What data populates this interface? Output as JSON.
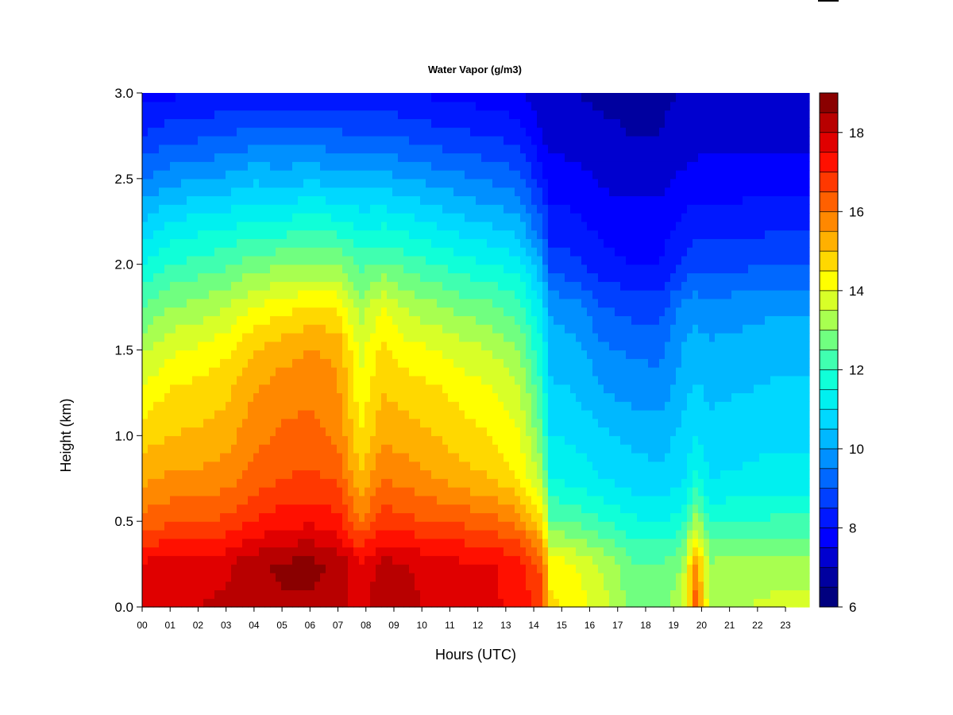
{
  "chart_data": {
    "type": "heatmap",
    "title": "Water Vapor (g/m3)",
    "xlabel": "Hours (UTC)",
    "ylabel": "Height (km)",
    "x_ticks": [
      "00",
      "01",
      "02",
      "03",
      "04",
      "05",
      "06",
      "07",
      "08",
      "09",
      "10",
      "11",
      "12",
      "13",
      "14",
      "15",
      "16",
      "17",
      "18",
      "19",
      "20",
      "21",
      "22",
      "23"
    ],
    "xlim": [
      0,
      23.85
    ],
    "y_ticks": [
      "0.0",
      "0.5",
      "1.0",
      "1.5",
      "2.0",
      "2.5",
      "3.0"
    ],
    "ylim": [
      0,
      3.0
    ],
    "colorbar": {
      "min": 6,
      "max": 19,
      "step": 0.5,
      "ticks": [
        "6",
        "8",
        "10",
        "12",
        "14",
        "16",
        "18"
      ],
      "colors": [
        "#00007f",
        "#00009f",
        "#0000cf",
        "#0000ff",
        "#0018ff",
        "#0040ff",
        "#0068ff",
        "#0090ff",
        "#00b8ff",
        "#00d8ff",
        "#00f0f0",
        "#10ffd8",
        "#40ffb0",
        "#70ff80",
        "#a8ff50",
        "#d8ff28",
        "#ffff00",
        "#ffd800",
        "#ffb000",
        "#ff8800",
        "#ff6000",
        "#ff3800",
        "#ff1000",
        "#e00000",
        "#b80000",
        "#8a0000"
      ]
    },
    "profile_heights_km": [
      0.0,
      0.25,
      0.5,
      0.75,
      1.0,
      1.25,
      1.5,
      1.75,
      2.0,
      2.25,
      2.5,
      2.75,
      3.0
    ],
    "profiles": [
      {
        "hour": 0.0,
        "values": [
          17.8,
          17.6,
          16.2,
          15.4,
          14.8,
          14.1,
          13.4,
          12.5,
          11.5,
          10.5,
          9.5,
          8.5,
          7.8
        ]
      },
      {
        "hour": 1.0,
        "values": [
          18.0,
          17.8,
          16.4,
          15.6,
          15.0,
          14.6,
          13.9,
          13.0,
          12.0,
          11.0,
          9.8,
          8.8,
          7.9
        ]
      },
      {
        "hour": 2.0,
        "values": [
          18.0,
          17.8,
          16.5,
          15.6,
          15.1,
          14.7,
          14.1,
          13.2,
          12.2,
          11.2,
          10.0,
          8.9,
          8.0
        ]
      },
      {
        "hour": 3.0,
        "values": [
          18.1,
          17.9,
          16.6,
          15.8,
          15.3,
          14.9,
          14.4,
          13.5,
          12.4,
          11.3,
          10.1,
          9.0,
          8.1
        ]
      },
      {
        "hour": 4.0,
        "values": [
          18.3,
          18.4,
          17.0,
          16.2,
          15.8,
          15.5,
          15.0,
          14.0,
          12.8,
          11.6,
          10.4,
          9.2,
          8.2
        ]
      },
      {
        "hour": 5.0,
        "values": [
          18.4,
          18.6,
          17.3,
          16.5,
          16.1,
          15.8,
          15.3,
          14.3,
          12.9,
          11.6,
          10.3,
          9.2,
          8.2
        ]
      },
      {
        "hour": 6.0,
        "values": [
          18.4,
          18.7,
          17.4,
          16.6,
          16.2,
          15.9,
          15.5,
          14.6,
          13.0,
          11.7,
          10.4,
          9.2,
          8.2
        ]
      },
      {
        "hour": 7.0,
        "values": [
          18.2,
          18.4,
          17.2,
          16.4,
          15.9,
          15.6,
          15.4,
          14.5,
          13.0,
          11.6,
          10.3,
          9.1,
          8.2
        ]
      },
      {
        "hour": 7.8,
        "values": [
          17.8,
          17.6,
          16.0,
          15.0,
          14.5,
          14.2,
          13.8,
          13.2,
          12.4,
          11.3,
          10.2,
          9.0,
          8.1
        ]
      },
      {
        "hour": 8.6,
        "values": [
          18.3,
          18.2,
          16.8,
          16.0,
          15.4,
          15.0,
          14.7,
          14.0,
          12.6,
          11.4,
          10.2,
          9.0,
          8.1
        ]
      },
      {
        "hour": 9.5,
        "values": [
          18.1,
          18.0,
          16.6,
          15.8,
          15.2,
          14.8,
          14.2,
          13.4,
          12.3,
          11.2,
          10.0,
          8.9,
          8.0
        ]
      },
      {
        "hour": 10.5,
        "values": [
          17.9,
          17.8,
          16.5,
          15.5,
          15.0,
          14.6,
          14.0,
          13.1,
          12.0,
          10.9,
          9.8,
          8.7,
          7.9
        ]
      },
      {
        "hour": 11.5,
        "values": [
          17.7,
          17.6,
          16.4,
          15.2,
          14.7,
          14.3,
          13.7,
          12.8,
          11.7,
          10.6,
          9.6,
          8.6,
          7.8
        ]
      },
      {
        "hour": 12.5,
        "values": [
          17.6,
          17.6,
          16.2,
          15.0,
          14.5,
          14.1,
          13.5,
          12.6,
          11.5,
          10.4,
          9.4,
          8.5,
          7.7
        ]
      },
      {
        "hour": 13.5,
        "values": [
          17.3,
          17.2,
          15.8,
          14.5,
          14.0,
          13.6,
          13.0,
          12.2,
          11.2,
          10.1,
          9.2,
          8.3,
          7.6
        ]
      },
      {
        "hour": 14.3,
        "values": [
          16.8,
          16.3,
          14.6,
          13.3,
          12.6,
          12.0,
          11.5,
          11.0,
          10.0,
          9.0,
          8.2,
          7.5,
          7.2
        ]
      },
      {
        "hour": 14.6,
        "values": [
          14.6,
          14.4,
          12.6,
          11.5,
          11.0,
          10.6,
          10.3,
          9.9,
          8.8,
          8.2,
          7.8,
          7.3,
          7.1
        ]
      },
      {
        "hour": 15.5,
        "values": [
          14.3,
          14.0,
          12.4,
          11.3,
          10.9,
          10.5,
          10.2,
          9.7,
          8.6,
          8.1,
          7.7,
          7.2,
          7.0
        ]
      },
      {
        "hour": 16.5,
        "values": [
          13.7,
          13.4,
          12.0,
          11.0,
          10.6,
          10.0,
          9.6,
          9.0,
          8.2,
          7.8,
          7.4,
          7.1,
          6.9
        ]
      },
      {
        "hour": 17.5,
        "values": [
          12.9,
          12.6,
          11.6,
          10.7,
          10.4,
          9.8,
          9.4,
          8.8,
          8.0,
          7.7,
          7.3,
          7.0,
          6.9
        ]
      },
      {
        "hour": 18.5,
        "values": [
          12.8,
          12.5,
          11.5,
          10.6,
          10.3,
          9.7,
          9.4,
          8.8,
          8.0,
          7.7,
          7.3,
          7.0,
          6.9
        ]
      },
      {
        "hour": 19.3,
        "values": [
          13.3,
          13.0,
          11.7,
          10.9,
          10.6,
          10.3,
          10.0,
          9.6,
          8.6,
          8.1,
          7.6,
          7.2,
          7.0
        ]
      },
      {
        "hour": 19.8,
        "values": [
          16.4,
          15.8,
          13.3,
          11.6,
          11.0,
          10.6,
          10.3,
          9.8,
          8.9,
          8.3,
          7.7,
          7.3,
          7.1
        ]
      },
      {
        "hour": 20.3,
        "values": [
          13.3,
          13.1,
          11.9,
          11.0,
          10.7,
          10.4,
          10.1,
          9.7,
          8.8,
          8.2,
          7.7,
          7.3,
          7.1
        ]
      },
      {
        "hour": 21.5,
        "values": [
          13.5,
          13.2,
          12.0,
          11.1,
          10.8,
          10.5,
          10.2,
          9.8,
          8.9,
          8.3,
          7.7,
          7.3,
          7.1
        ]
      },
      {
        "hour": 22.5,
        "values": [
          13.6,
          13.3,
          12.1,
          11.2,
          10.9,
          10.6,
          10.3,
          9.9,
          9.0,
          8.3,
          7.7,
          7.3,
          7.1
        ]
      },
      {
        "hour": 23.85,
        "values": [
          13.6,
          13.3,
          12.1,
          11.2,
          10.9,
          10.6,
          10.3,
          9.9,
          9.0,
          8.3,
          7.7,
          7.3,
          7.1
        ]
      }
    ],
    "grid": false,
    "legend": "colorbar-right"
  }
}
